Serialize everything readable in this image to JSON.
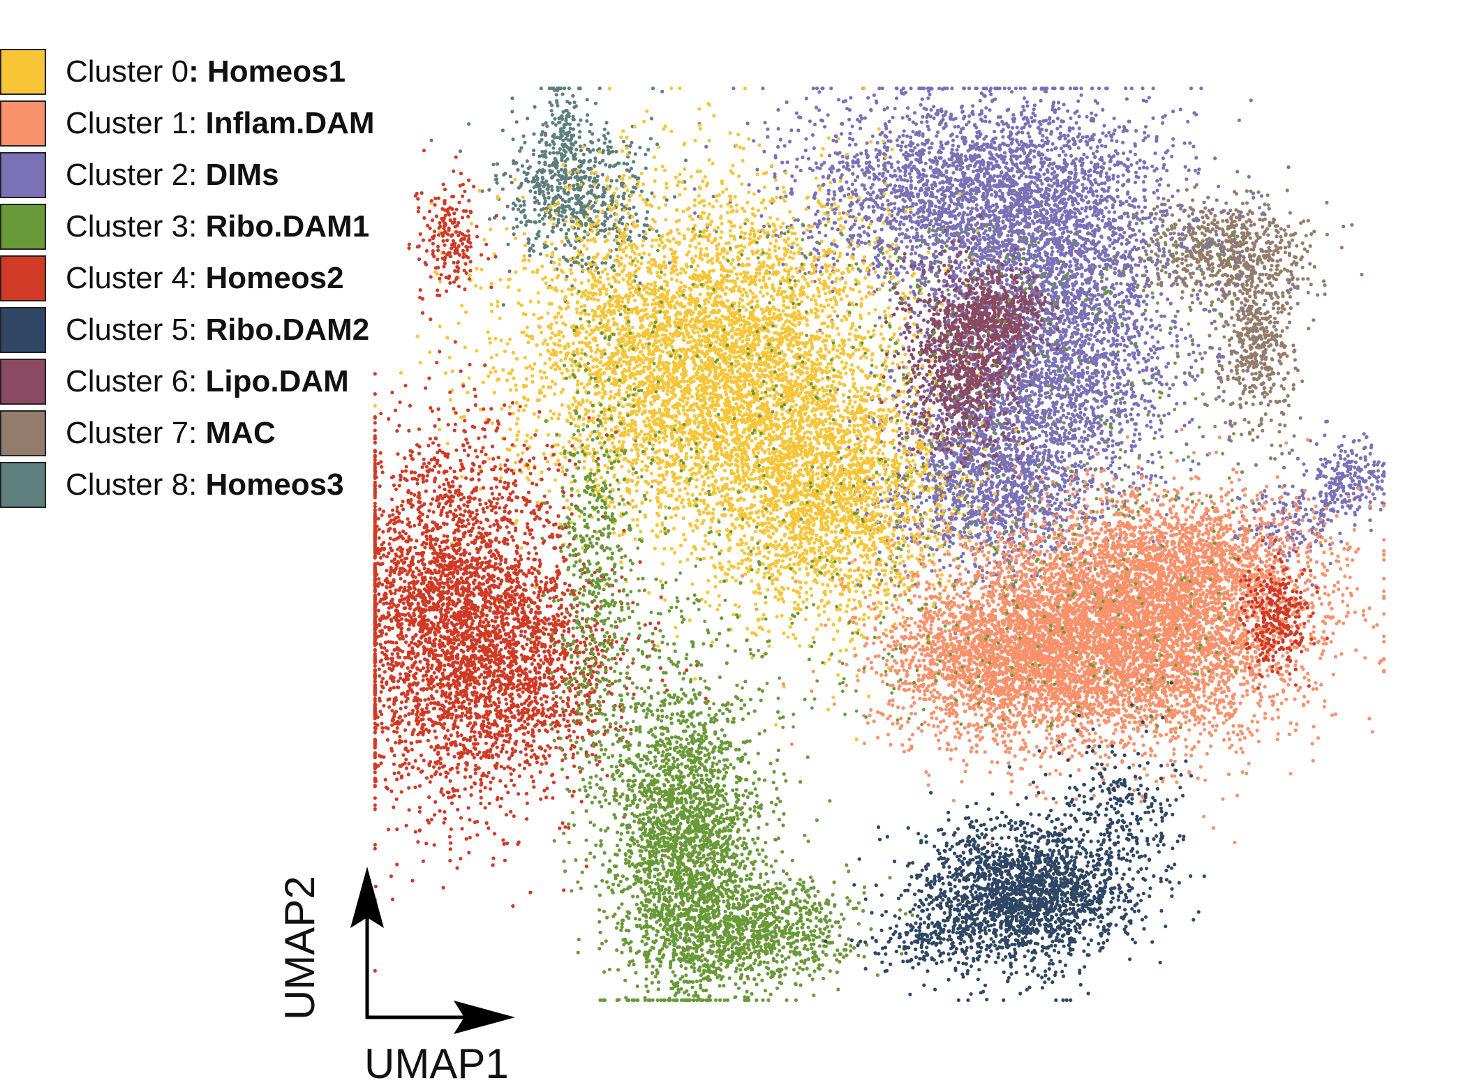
{
  "chart_data": {
    "type": "scatter",
    "title": "",
    "xlabel": "UMAP1",
    "ylabel": "UMAP2",
    "axes_style": "arrows",
    "grid": false,
    "legend_position": "top-left",
    "legend": [
      {
        "prefix": "Cluster 0",
        "sep": ": ",
        "name": "Homeos1",
        "bold_sep": true,
        "color": "#F7C536"
      },
      {
        "prefix": "Cluster 1",
        "sep": ": ",
        "name": "Inflam.DAM",
        "bold_sep": false,
        "color": "#F9916B"
      },
      {
        "prefix": "Cluster 2",
        "sep": ": ",
        "name": "DIMs",
        "bold_sep": false,
        "color": "#7B71B7"
      },
      {
        "prefix": "Cluster 3",
        "sep": ": ",
        "name": "Ribo.DAM1",
        "bold_sep": false,
        "color": "#6A9A38"
      },
      {
        "prefix": "Cluster 4",
        "sep": ": ",
        "name": "Homeos2",
        "bold_sep": false,
        "color": "#D13A25"
      },
      {
        "prefix": "Cluster 5",
        "sep": ": ",
        "name": "Ribo.DAM2",
        "bold_sep": false,
        "color": "#2F4764"
      },
      {
        "prefix": "Cluster 6",
        "sep": ": ",
        "name": "Lipo.DAM",
        "bold_sep": false,
        "color": "#8A4A62"
      },
      {
        "prefix": "Cluster 7",
        "sep": ": ",
        "name": "MAC",
        "bold_sep": false,
        "color": "#947C6C"
      },
      {
        "prefix": "Cluster 8",
        "sep": ": ",
        "name": "Homeos3",
        "bold_sep": false,
        "color": "#5E7F7C"
      }
    ],
    "point_size": "small",
    "note_points": "dense point clouds; per-cluster regions approximated below in UMAP units",
    "xlim": [
      0,
      100
    ],
    "ylim": [
      0,
      100
    ],
    "clusters": [
      {
        "id": 8,
        "regions": [
          {
            "cx": 20,
            "cy": 88,
            "sx": 3.5,
            "sy": 4,
            "n": 700
          },
          {
            "cx": 19,
            "cy": 95,
            "sx": 1,
            "sy": 3,
            "n": 100
          }
        ]
      },
      {
        "id": 7,
        "regions": [
          {
            "cx": 84,
            "cy": 82,
            "sx": 4,
            "sy": 3,
            "n": 700
          },
          {
            "cx": 87,
            "cy": 72,
            "sx": 1.8,
            "sy": 5,
            "n": 500
          }
        ]
      },
      {
        "id": 2,
        "regions": [
          {
            "cx": 60,
            "cy": 88,
            "sx": 9,
            "sy": 5.5,
            "n": 3000
          },
          {
            "cx": 67,
            "cy": 72,
            "sx": 6,
            "sy": 9,
            "n": 3000
          },
          {
            "cx": 60,
            "cy": 57,
            "sx": 5,
            "sy": 5,
            "n": 1400
          },
          {
            "cx": 96,
            "cy": 57,
            "sx": 2,
            "sy": 2,
            "n": 250
          },
          {
            "cx": 90,
            "cy": 52,
            "sx": 2.5,
            "sy": 2,
            "n": 150
          }
        ]
      },
      {
        "id": 0,
        "regions": [
          {
            "cx": 33,
            "cy": 70,
            "sx": 9,
            "sy": 9,
            "n": 5500
          },
          {
            "cx": 45,
            "cy": 55,
            "sx": 6,
            "sy": 7,
            "n": 2200
          }
        ]
      },
      {
        "id": 6,
        "regions": [
          {
            "cx": 58,
            "cy": 70,
            "sx": 2.8,
            "sy": 5,
            "n": 1000
          },
          {
            "cx": 62,
            "cy": 75,
            "sx": 2.2,
            "sy": 2.2,
            "n": 400
          }
        ]
      },
      {
        "id": 1,
        "regions": [
          {
            "cx": 73,
            "cy": 40,
            "sx": 9,
            "sy": 6,
            "n": 5500
          },
          {
            "cx": 80,
            "cy": 48,
            "sx": 7,
            "sy": 4,
            "n": 1500
          },
          {
            "cx": 62,
            "cy": 37,
            "sx": 6,
            "sy": 4,
            "n": 1500
          }
        ]
      },
      {
        "id": 4,
        "regions": [
          {
            "cx": 8,
            "cy": 42,
            "sx": 5.5,
            "sy": 10,
            "n": 3500
          },
          {
            "cx": 16,
            "cy": 37,
            "sx": 5,
            "sy": 6,
            "n": 900
          },
          {
            "cx": 8,
            "cy": 83,
            "sx": 1.5,
            "sy": 3,
            "n": 200
          },
          {
            "cx": 89,
            "cy": 42,
            "sx": 1.6,
            "sy": 3,
            "n": 300
          }
        ]
      },
      {
        "id": 3,
        "regions": [
          {
            "cx": 31,
            "cy": 18,
            "sx": 4,
            "sy": 9,
            "n": 2600
          },
          {
            "cx": 38,
            "cy": 8,
            "sx": 5,
            "sy": 3,
            "n": 900
          },
          {
            "cx": 22,
            "cy": 45,
            "sx": 2,
            "sy": 12,
            "n": 500
          }
        ]
      },
      {
        "id": 5,
        "regions": [
          {
            "cx": 64,
            "cy": 12,
            "sx": 5,
            "sy": 4,
            "n": 2000
          },
          {
            "cx": 74,
            "cy": 20,
            "sx": 3,
            "sy": 5,
            "n": 300
          },
          {
            "cx": 55,
            "cy": 7,
            "sx": 3,
            "sy": 1.5,
            "n": 150
          }
        ]
      }
    ]
  }
}
